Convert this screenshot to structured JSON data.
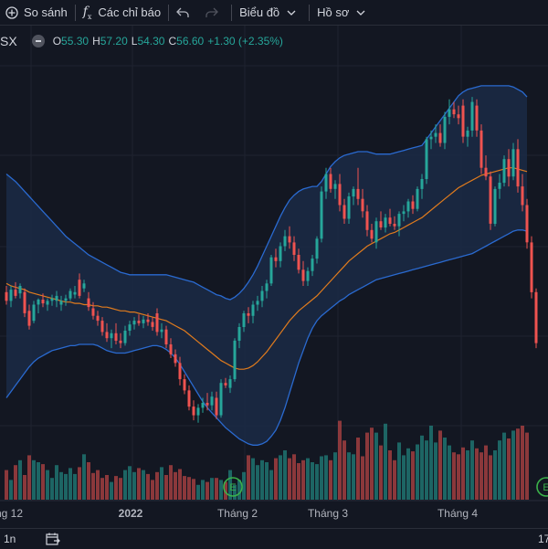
{
  "toolbar": {
    "compare_label": "So sánh",
    "indicators_label": "Các chỉ báo",
    "chart_type_label": "Biểu đồ",
    "profile_label": "Hồ sơ"
  },
  "legend": {
    "symbol": "SX",
    "open_key": "O",
    "open": "55.30",
    "high_key": "H",
    "high": "57.20",
    "low_key": "L",
    "low": "54.30",
    "close_key": "C",
    "close": "56.60",
    "change": "+1.30 (+2.35%)"
  },
  "bottom": {
    "interval": "1n",
    "time": "17"
  },
  "chart_data": {
    "type": "candlestick",
    "x_ticks": [
      "ng 12",
      "2022",
      "Tháng 2",
      "Tháng 3",
      "Tháng 4"
    ],
    "price_range": [
      36,
      67
    ],
    "volume_range": [
      0,
      100
    ],
    "overlays": [
      "bollinger-bands",
      "moving-average"
    ],
    "grid": true,
    "markers": [
      "E",
      "E"
    ],
    "colors": {
      "up": "#26a69a",
      "down": "#ef5350",
      "band": "#2a6ad0",
      "basis": "#e07b1d",
      "band_fill": "#1b2a45"
    },
    "candles": [
      [
        48.5,
        49.0,
        47.5,
        47.8
      ],
      [
        47.8,
        49.0,
        47.3,
        48.7
      ],
      [
        48.7,
        49.3,
        48.0,
        48.2
      ],
      [
        48.4,
        49.2,
        48.0,
        49.0
      ],
      [
        48.5,
        48.8,
        46.5,
        46.8
      ],
      [
        47.0,
        47.5,
        45.5,
        45.8
      ],
      [
        46.2,
        47.8,
        46.0,
        47.5
      ],
      [
        47.5,
        48.0,
        46.8,
        47.9
      ],
      [
        47.9,
        48.4,
        47.3,
        47.6
      ],
      [
        47.5,
        48.0,
        47.0,
        47.8
      ],
      [
        47.8,
        48.3,
        47.4,
        48.0
      ],
      [
        47.8,
        48.6,
        47.3,
        48.2
      ],
      [
        47.5,
        48.2,
        47.0,
        47.8
      ],
      [
        47.8,
        48.3,
        47.4,
        48.0
      ],
      [
        48.0,
        48.8,
        47.8,
        48.6
      ],
      [
        48.3,
        49.0,
        48.0,
        48.5
      ],
      [
        49.5,
        50.0,
        48.0,
        48.2
      ],
      [
        48.8,
        49.5,
        48.5,
        49.2
      ],
      [
        48.0,
        48.5,
        47.0,
        47.3
      ],
      [
        47.2,
        47.7,
        46.3,
        46.6
      ],
      [
        46.6,
        47.0,
        45.8,
        46.2
      ],
      [
        46.2,
        46.5,
        45.0,
        45.3
      ],
      [
        45.3,
        46.0,
        44.5,
        44.8
      ],
      [
        44.8,
        45.5,
        44.0,
        45.2
      ],
      [
        45.2,
        46.0,
        44.3,
        44.6
      ],
      [
        44.6,
        45.2,
        44.0,
        44.4
      ],
      [
        44.4,
        45.8,
        44.2,
        45.4
      ],
      [
        45.4,
        46.2,
        45.0,
        45.9
      ],
      [
        45.9,
        46.5,
        45.5,
        46.2
      ],
      [
        46.2,
        46.7,
        45.8,
        46.0
      ],
      [
        46.0,
        46.6,
        45.6,
        46.3
      ],
      [
        46.3,
        46.8,
        45.8,
        46.1
      ],
      [
        46.1,
        46.5,
        45.4,
        45.7
      ],
      [
        46.8,
        47.2,
        45.0,
        45.3
      ],
      [
        45.3,
        46.0,
        44.8,
        45.5
      ],
      [
        45.5,
        45.8,
        44.0,
        44.3
      ],
      [
        44.3,
        44.8,
        43.2,
        43.5
      ],
      [
        43.5,
        43.9,
        42.5,
        42.8
      ],
      [
        42.8,
        43.3,
        41.0,
        41.5
      ],
      [
        41.5,
        41.9,
        40.3,
        40.6
      ],
      [
        40.6,
        41.0,
        39.0,
        39.3
      ],
      [
        39.3,
        39.8,
        38.2,
        38.6
      ],
      [
        38.6,
        39.5,
        38.0,
        39.2
      ],
      [
        39.2,
        40.0,
        38.8,
        39.6
      ],
      [
        39.6,
        40.4,
        39.0,
        39.4
      ],
      [
        39.4,
        40.5,
        39.0,
        40.1
      ],
      [
        40.0,
        40.5,
        38.3,
        38.6
      ],
      [
        38.6,
        41.5,
        38.4,
        41.2
      ],
      [
        41.2,
        41.6,
        40.8,
        41.0
      ],
      [
        40.8,
        41.8,
        40.4,
        41.5
      ],
      [
        41.5,
        44.8,
        41.3,
        44.6
      ],
      [
        44.6,
        46.0,
        44.0,
        45.7
      ],
      [
        45.7,
        47.0,
        45.3,
        46.8
      ],
      [
        46.8,
        47.3,
        46.0,
        46.6
      ],
      [
        46.6,
        47.8,
        46.0,
        47.5
      ],
      [
        47.5,
        48.2,
        47.0,
        47.8
      ],
      [
        47.8,
        49.0,
        47.3,
        48.6
      ],
      [
        48.6,
        49.5,
        48.0,
        49.2
      ],
      [
        49.2,
        51.5,
        49.0,
        51.3
      ],
      [
        51.3,
        52.0,
        50.5,
        51.0
      ],
      [
        51.0,
        52.5,
        50.5,
        52.2
      ],
      [
        52.2,
        53.5,
        51.8,
        53.0
      ],
      [
        53.0,
        53.8,
        52.0,
        52.5
      ],
      [
        52.5,
        53.0,
        51.0,
        51.5
      ],
      [
        51.5,
        52.0,
        50.0,
        50.3
      ],
      [
        50.3,
        51.0,
        49.0,
        49.4
      ],
      [
        49.4,
        50.5,
        49.0,
        50.2
      ],
      [
        50.2,
        51.5,
        49.8,
        51.2
      ],
      [
        51.2,
        53.0,
        50.8,
        52.8
      ],
      [
        52.8,
        57.0,
        52.5,
        56.6
      ],
      [
        56.6,
        58.5,
        56.0,
        58.0
      ],
      [
        58.0,
        58.5,
        56.5,
        56.8
      ],
      [
        56.8,
        57.5,
        56.0,
        57.2
      ],
      [
        57.2,
        58.0,
        55.0,
        55.5
      ],
      [
        55.5,
        56.0,
        54.0,
        54.4
      ],
      [
        54.4,
        56.5,
        54.0,
        56.2
      ],
      [
        56.2,
        57.0,
        55.5,
        56.8
      ],
      [
        56.8,
        58.5,
        55.5,
        56.0
      ],
      [
        56.0,
        56.8,
        54.5,
        55.0
      ],
      [
        55.0,
        55.5,
        53.0,
        53.5
      ],
      [
        53.5,
        54.0,
        52.5,
        52.8
      ],
      [
        52.5,
        54.5,
        52.0,
        54.2
      ],
      [
        54.2,
        55.0,
        53.5,
        53.7
      ],
      [
        53.7,
        54.8,
        53.3,
        54.5
      ],
      [
        54.5,
        55.2,
        53.8,
        54.0
      ],
      [
        54.0,
        54.6,
        53.5,
        53.8
      ],
      [
        53.8,
        55.0,
        53.0,
        54.8
      ],
      [
        54.8,
        55.5,
        54.2,
        55.0
      ],
      [
        55.0,
        56.0,
        54.5,
        55.8
      ],
      [
        55.8,
        56.3,
        54.8,
        55.2
      ],
      [
        55.2,
        57.0,
        55.0,
        56.8
      ],
      [
        56.8,
        58.0,
        56.0,
        57.6
      ],
      [
        57.6,
        61.0,
        57.2,
        60.8
      ],
      [
        60.8,
        61.5,
        60.0,
        61.0
      ],
      [
        61.0,
        62.0,
        60.5,
        61.3
      ],
      [
        61.3,
        62.0,
        60.2,
        60.5
      ],
      [
        60.5,
        63.0,
        60.0,
        62.6
      ],
      [
        62.6,
        64.0,
        62.0,
        63.2
      ],
      [
        63.2,
        63.8,
        62.5,
        62.8
      ],
      [
        62.8,
        63.5,
        62.0,
        62.5
      ],
      [
        63.5,
        64.0,
        60.5,
        61.0
      ],
      [
        61.0,
        61.8,
        60.2,
        61.5
      ],
      [
        61.5,
        64.2,
        61.0,
        63.8
      ],
      [
        63.5,
        64.0,
        61.0,
        61.5
      ],
      [
        61.5,
        62.0,
        58.0,
        58.5
      ],
      [
        58.5,
        59.5,
        57.5,
        57.8
      ],
      [
        57.8,
        58.2,
        53.5,
        54.0
      ],
      [
        54.0,
        57.0,
        53.8,
        56.8
      ],
      [
        56.8,
        58.0,
        56.0,
        57.3
      ],
      [
        57.3,
        59.5,
        57.0,
        59.2
      ],
      [
        59.2,
        60.0,
        57.0,
        57.8
      ],
      [
        57.8,
        60.5,
        57.5,
        60.0
      ],
      [
        60.0,
        60.8,
        56.5,
        57.0
      ],
      [
        57.0,
        58.0,
        55.0,
        55.5
      ],
      [
        55.5,
        56.0,
        52.0,
        52.5
      ],
      [
        52.5,
        53.0,
        48.0,
        48.5
      ],
      [
        48.5,
        48.8,
        44.0,
        44.4
      ]
    ],
    "volumes": [
      30,
      20,
      35,
      40,
      25,
      45,
      40,
      38,
      36,
      30,
      22,
      35,
      28,
      26,
      32,
      26,
      33,
      46,
      38,
      27,
      30,
      22,
      25,
      18,
      24,
      22,
      30,
      34,
      28,
      32,
      30,
      26,
      20,
      28,
      33,
      25,
      35,
      28,
      31,
      24,
      23,
      21,
      15,
      20,
      18,
      22,
      22,
      20,
      18,
      30,
      15,
      20,
      28,
      45,
      42,
      35,
      40,
      38,
      30,
      42,
      45,
      50,
      42,
      46,
      37,
      40,
      42,
      38,
      36,
      44,
      45,
      40,
      48,
      80,
      60,
      48,
      46,
      63,
      44,
      68,
      73,
      68,
      55,
      77,
      50,
      40,
      58,
      45,
      52,
      49,
      56,
      65,
      60,
      75,
      58,
      70,
      63,
      55,
      48,
      46,
      53,
      50,
      60,
      52,
      48,
      55,
      45,
      50,
      60,
      68,
      62,
      70,
      72,
      75,
      68
    ],
    "basis": [
      49.2,
      49.0,
      48.9,
      48.8,
      48.7,
      48.5,
      48.4,
      48.3,
      48.2,
      48.1,
      48.0,
      47.9,
      47.8,
      47.7,
      47.7,
      47.6,
      47.6,
      47.5,
      47.5,
      47.4,
      47.4,
      47.3,
      47.3,
      47.2,
      47.1,
      47.0,
      47.0,
      46.9,
      46.9,
      46.8,
      46.7,
      46.6,
      46.5,
      46.4,
      46.3,
      46.2,
      46.0,
      45.8,
      45.6,
      45.4,
      45.1,
      44.8,
      44.5,
      44.2,
      43.9,
      43.6,
      43.3,
      43.0,
      42.8,
      42.6,
      42.4,
      42.3,
      42.3,
      42.4,
      42.6,
      42.9,
      43.3,
      43.7,
      44.2,
      44.7,
      45.2,
      45.7,
      46.2,
      46.6,
      47.0,
      47.3,
      47.6,
      47.9,
      48.2,
      48.6,
      49.0,
      49.4,
      49.8,
      50.2,
      50.6,
      51.0,
      51.3,
      51.6,
      51.9,
      52.2,
      52.4,
      52.6,
      52.8,
      53.0,
      53.2,
      53.3,
      53.5,
      53.7,
      53.9,
      54.1,
      54.3,
      54.5,
      54.8,
      55.1,
      55.4,
      55.7,
      56.0,
      56.3,
      56.6,
      56.9,
      57.1,
      57.3,
      57.5,
      57.7,
      57.9,
      58.0,
      58.1,
      58.2,
      58.3,
      58.4,
      58.5,
      58.5,
      58.4,
      58.3,
      58.2
    ],
    "upper": [
      58.0,
      57.7,
      57.4,
      57.0,
      56.6,
      56.2,
      55.8,
      55.4,
      55.0,
      54.6,
      54.2,
      53.8,
      53.4,
      53.0,
      52.7,
      52.4,
      52.1,
      51.8,
      51.5,
      51.3,
      51.1,
      50.9,
      50.7,
      50.5,
      50.3,
      50.1,
      50.0,
      49.9,
      49.9,
      49.9,
      49.9,
      49.9,
      49.9,
      49.9,
      49.9,
      49.9,
      49.8,
      49.7,
      49.6,
      49.5,
      49.4,
      49.3,
      49.1,
      48.9,
      48.7,
      48.5,
      48.3,
      48.2,
      48.0,
      47.9,
      48.1,
      48.4,
      48.8,
      49.3,
      49.9,
      50.6,
      51.4,
      52.2,
      53.0,
      53.8,
      54.6,
      55.3,
      55.9,
      56.3,
      56.6,
      56.8,
      56.9,
      57.0,
      57.0,
      57.4,
      58.0,
      58.6,
      59.0,
      59.3,
      59.5,
      59.6,
      59.7,
      59.8,
      59.8,
      59.8,
      59.7,
      59.6,
      59.6,
      59.6,
      59.6,
      59.7,
      59.8,
      59.9,
      60.0,
      60.1,
      60.2,
      60.3,
      60.8,
      61.3,
      61.8,
      62.3,
      62.8,
      63.3,
      63.8,
      64.3,
      64.6,
      64.8,
      64.9,
      65.0,
      65.1,
      65.1,
      65.1,
      65.1,
      65.1,
      65.1,
      65.1,
      65.0,
      64.8,
      64.6,
      64.2
    ],
    "lower": [
      40.0,
      40.5,
      41.0,
      41.5,
      42.0,
      42.5,
      42.9,
      43.2,
      43.4,
      43.6,
      43.8,
      43.9,
      44.0,
      44.1,
      44.2,
      44.2,
      44.3,
      44.3,
      44.3,
      44.3,
      44.2,
      44.0,
      43.8,
      43.7,
      43.6,
      43.6,
      43.6,
      43.7,
      43.8,
      43.9,
      44.0,
      44.1,
      44.2,
      44.2,
      44.1,
      43.9,
      43.6,
      43.2,
      42.7,
      42.1,
      41.5,
      40.9,
      40.3,
      39.7,
      39.2,
      38.8,
      38.4,
      38.0,
      37.6,
      37.3,
      37.0,
      36.7,
      36.5,
      36.3,
      36.2,
      36.2,
      36.3,
      36.5,
      36.9,
      37.4,
      38.2,
      39.2,
      40.4,
      41.6,
      42.8,
      43.8,
      44.8,
      45.6,
      46.2,
      46.6,
      46.9,
      47.2,
      47.5,
      47.8,
      48.0,
      48.3,
      48.5,
      48.7,
      48.9,
      49.1,
      49.3,
      49.5,
      49.6,
      49.7,
      49.8,
      49.9,
      50.0,
      50.1,
      50.2,
      50.3,
      50.4,
      50.5,
      50.6,
      50.7,
      50.8,
      50.9,
      51.0,
      51.1,
      51.2,
      51.3,
      51.4,
      51.5,
      51.6,
      51.8,
      52.0,
      52.2,
      52.4,
      52.6,
      52.8,
      53.0,
      53.2,
      53.4,
      53.5,
      53.5,
      53.4
    ]
  }
}
